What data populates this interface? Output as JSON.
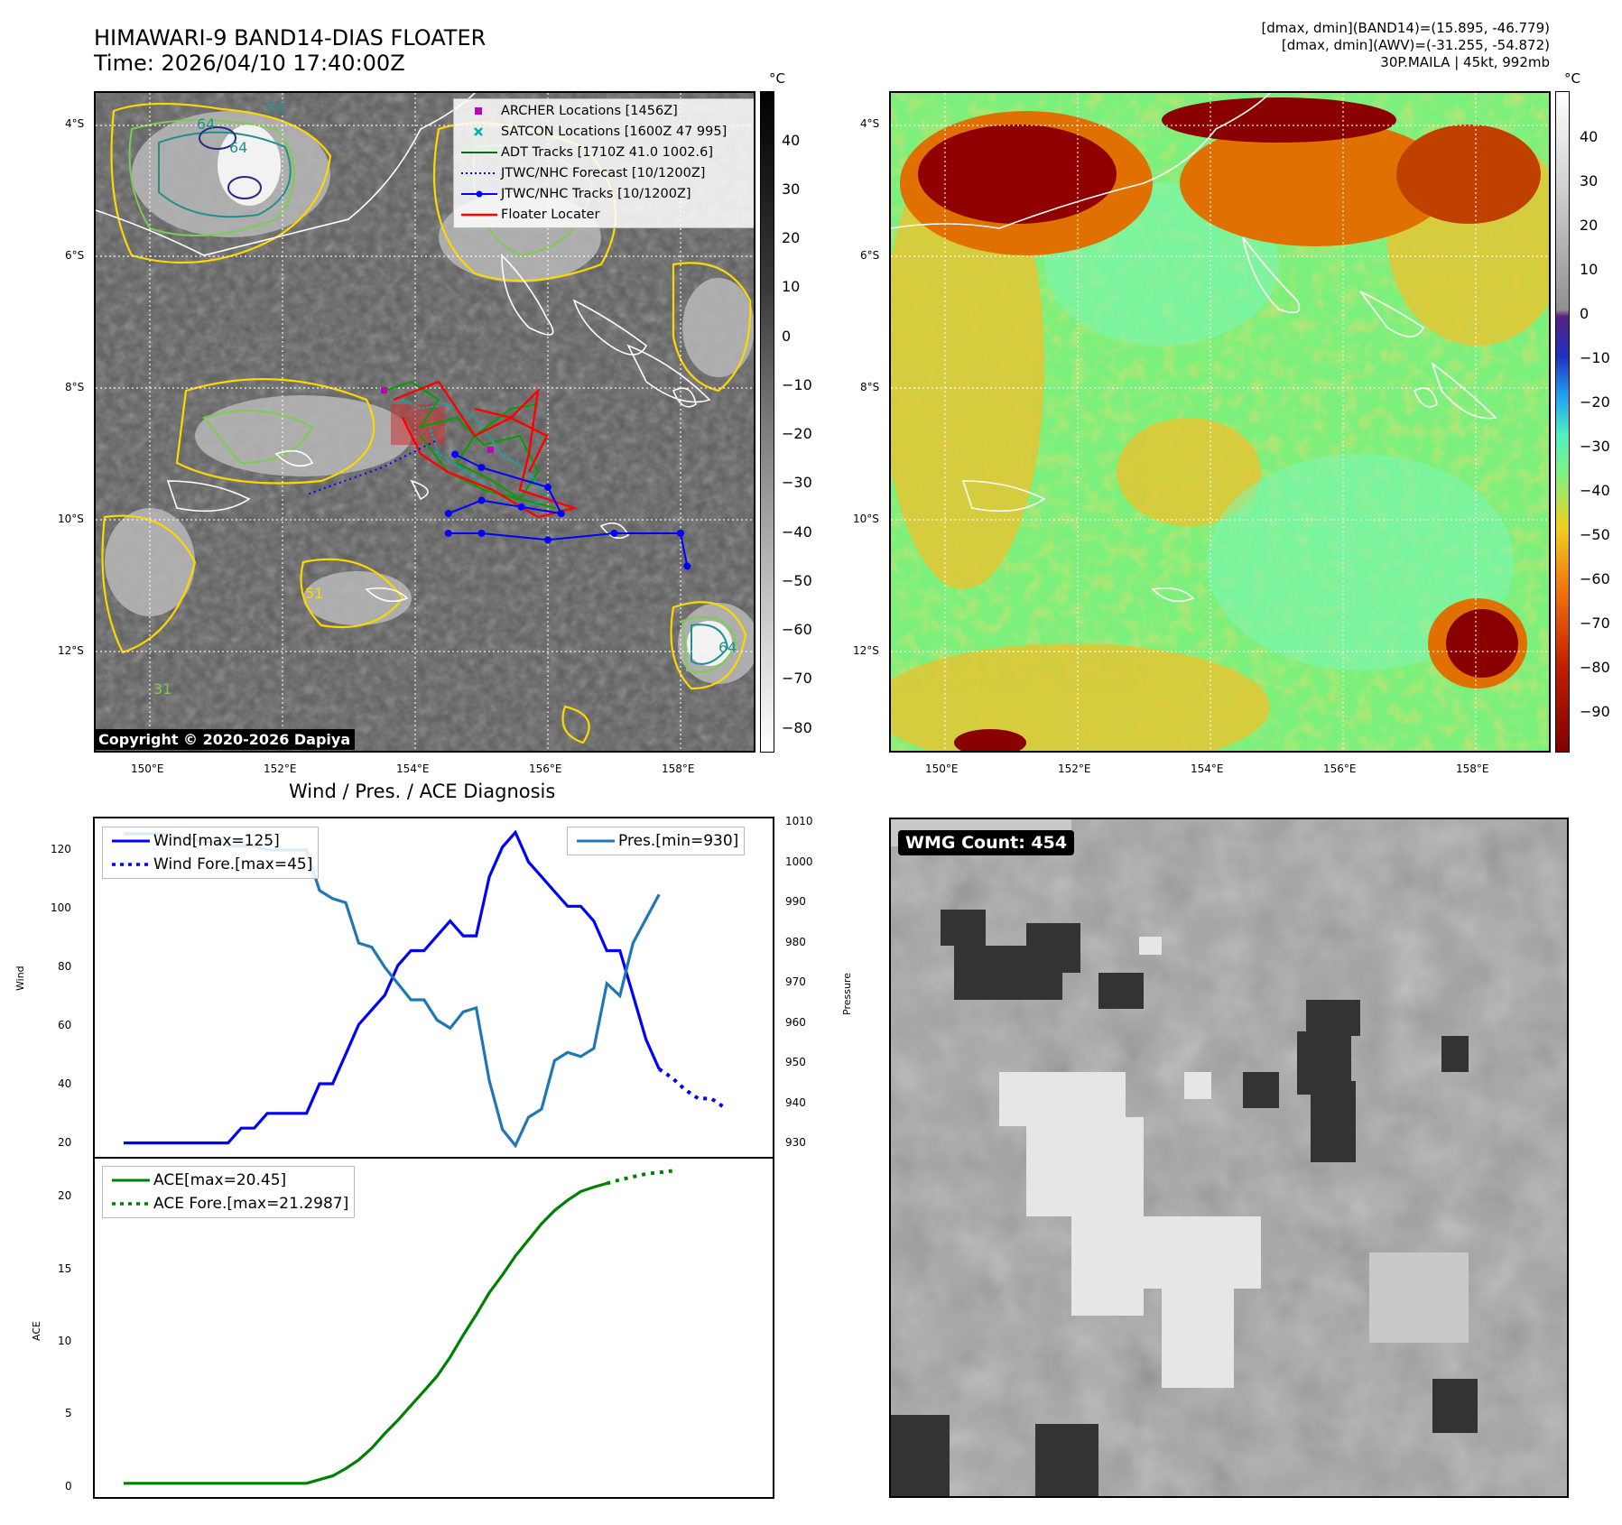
{
  "header": {
    "title_line1": "HIMAWARI-9 BAND14-DIAS FLOATER",
    "title_line2": "Time: 2026/04/10 17:40:00Z",
    "info_line1": "[dmax, dmin](BAND14)=(15.895, -46.779)",
    "info_line2": "[dmax, dmin](AWV)=(-31.255, -54.872)",
    "info_line3": "30P.MAILA | 45kt, 992mb"
  },
  "map": {
    "lat_labels": [
      "4°S",
      "6°S",
      "8°S",
      "10°S",
      "12°S"
    ],
    "lon_labels": [
      "150°E",
      "152°E",
      "154°E",
      "156°E",
      "158°E"
    ],
    "copyright": "Copyright © 2020-2026 Dapiya",
    "contour_labels": [
      "64",
      "64",
      "64",
      "51",
      "31",
      "64"
    ],
    "legend": [
      {
        "label": "ARCHER Locations [1456Z]",
        "color": "#c000c0",
        "marker": "square"
      },
      {
        "label": "SATCON Locations [1600Z 47 995]",
        "color": "#00b0b0",
        "marker": "x"
      },
      {
        "label": "ADT Tracks [1710Z 41.0 1002.6]",
        "color": "#007000",
        "marker": "line"
      },
      {
        "label": "JTWC/NHC Forecast [10/1200Z]",
        "color": "#0000ff",
        "marker": "dotted"
      },
      {
        "label": "JTWC/NHC Tracks [10/1200Z]",
        "color": "#0000ff",
        "marker": "line-dot"
      },
      {
        "label": "Floater Locater",
        "color": "#ff0000",
        "marker": "line"
      }
    ],
    "jtwc_track": [
      [
        158.1,
        -10.7
      ],
      [
        158.0,
        -10.2
      ],
      [
        157.0,
        -10.2
      ],
      [
        156.0,
        -10.3
      ],
      [
        155.0,
        -10.2
      ],
      [
        154.5,
        -10.2
      ]
    ],
    "jtwc_track2": [
      [
        154.5,
        -9.9
      ],
      [
        155.0,
        -9.7
      ],
      [
        155.6,
        -9.8
      ],
      [
        156.2,
        -9.9
      ],
      [
        156.0,
        -9.5
      ],
      [
        155.0,
        -9.2
      ],
      [
        154.6,
        -9.0
      ]
    ],
    "jtwc_forecast": [
      [
        154.3,
        -8.8
      ],
      [
        153.5,
        -9.2
      ],
      [
        152.4,
        -9.6
      ]
    ]
  },
  "colorbar_left": {
    "unit": "°C",
    "ticks": [
      "40",
      "30",
      "20",
      "10",
      "0",
      "−10",
      "−20",
      "−30",
      "−40",
      "−50",
      "−60",
      "−70",
      "−80"
    ]
  },
  "colorbar_right": {
    "unit": "°C",
    "ticks": [
      "40",
      "30",
      "20",
      "10",
      "0",
      "−10",
      "−20",
      "−30",
      "−40",
      "−50",
      "−60",
      "−70",
      "−80",
      "−90"
    ]
  },
  "diagnosis": {
    "title": "Wind / Pres. / ACE Diagnosis",
    "wind_ylabel": "Wind",
    "pres_ylabel": "Pressure",
    "ace_ylabel": "ACE",
    "wind_ticks": [
      "120",
      "100",
      "80",
      "60",
      "40",
      "20"
    ],
    "pres_ticks": [
      "1010",
      "1000",
      "990",
      "980",
      "970",
      "960",
      "950",
      "940",
      "930"
    ],
    "ace_ticks": [
      "20",
      "15",
      "10",
      "5",
      "0"
    ],
    "legend_wind": "Wind[max=125]",
    "legend_wind_fore": "Wind Fore.[max=45]",
    "legend_pres": "Pres.[min=930]",
    "legend_ace": "ACE[max=20.45]",
    "legend_ace_fore": "ACE Fore.[max=21.2987]",
    "wmg_count": "WMG Count: 454"
  },
  "chart_data": [
    {
      "type": "line",
      "title": "Wind / Pres. / ACE Diagnosis",
      "ylabel": "Wind",
      "ylim": [
        15,
        130
      ],
      "series": [
        {
          "name": "Wind[max=125]",
          "color": "#0000ff",
          "style": "solid",
          "values": [
            20,
            20,
            20,
            20,
            20,
            20,
            20,
            20,
            20,
            25,
            25,
            30,
            30,
            30,
            30,
            40,
            40,
            50,
            60,
            65,
            70,
            80,
            85,
            85,
            90,
            95,
            90,
            90,
            110,
            120,
            125,
            115,
            110,
            105,
            100,
            100,
            95,
            85,
            85,
            70,
            55,
            45
          ]
        },
        {
          "name": "Wind Fore.[max=45]",
          "color": "#0000ff",
          "style": "dotted",
          "x0": 41,
          "values": [
            45,
            42,
            38,
            35,
            35,
            32
          ]
        },
        {
          "name": "Pres.[min=930]",
          "color": "#1f77b4",
          "style": "solid",
          "axis": "right",
          "ylim": [
            927,
            1011
          ],
          "values": [
            1007,
            1007,
            1007,
            1007,
            1006,
            1006,
            1005,
            1005,
            1004,
            1004,
            1004,
            1003,
            1003,
            1003,
            1003,
            993,
            991,
            990,
            980,
            979,
            974,
            970,
            966,
            966,
            961,
            959,
            963,
            964,
            946,
            934,
            930,
            937,
            939,
            951,
            953,
            952,
            954,
            970,
            967,
            980,
            986,
            992
          ]
        }
      ]
    },
    {
      "type": "line",
      "ylabel": "ACE",
      "ylim": [
        -1,
        22.2
      ],
      "series": [
        {
          "name": "ACE[max=20.45]",
          "color": "#008000",
          "style": "solid",
          "values": [
            0,
            0,
            0,
            0,
            0,
            0,
            0,
            0,
            0,
            0,
            0,
            0,
            0,
            0,
            0,
            0.25,
            0.5,
            1.0,
            1.6,
            2.4,
            3.4,
            4.3,
            5.3,
            6.3,
            7.3,
            8.6,
            10.1,
            11.5,
            13.0,
            14.2,
            15.5,
            16.6,
            17.7,
            18.6,
            19.3,
            19.9,
            20.2,
            20.45
          ]
        },
        {
          "name": "ACE Fore.[max=21.2987]",
          "color": "#008000",
          "style": "dotted",
          "x0": 37,
          "values": [
            20.45,
            20.7,
            20.9,
            21.1,
            21.2,
            21.2987
          ]
        }
      ]
    }
  ]
}
